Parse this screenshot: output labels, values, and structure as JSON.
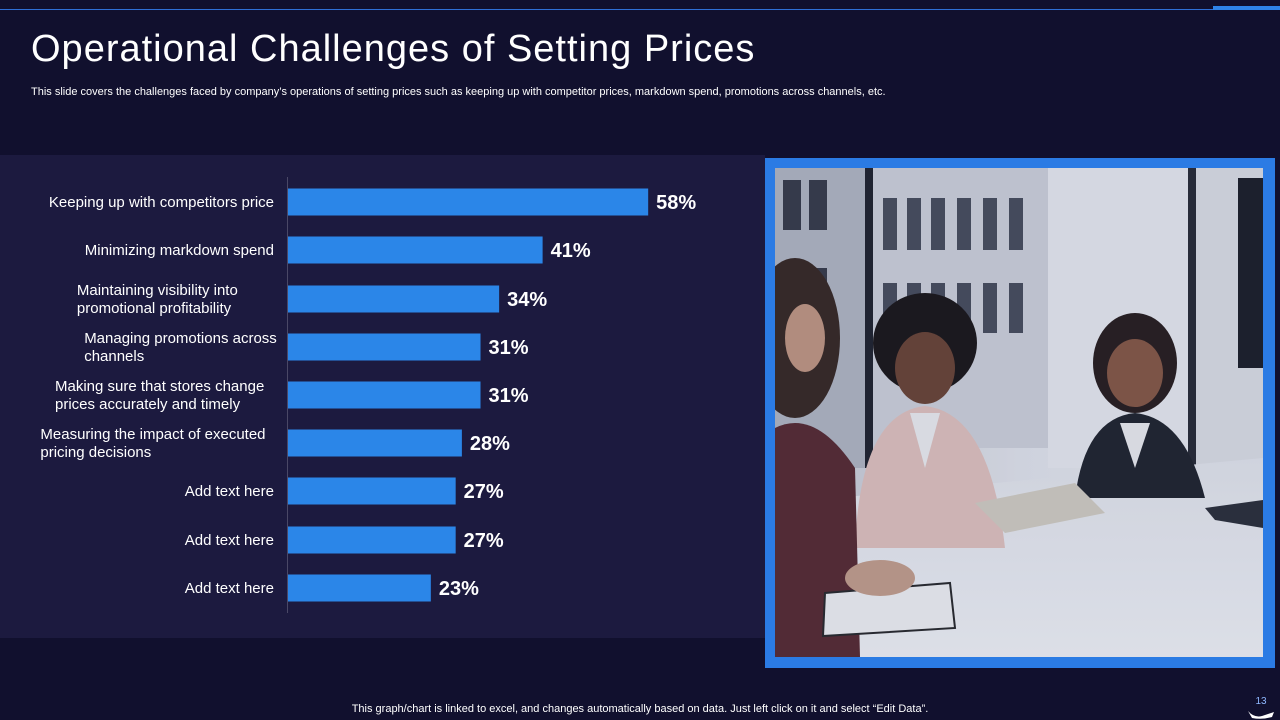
{
  "slide": {
    "title": "Operational Challenges of Setting Prices",
    "subtitle": "This slide covers the challenges faced by company’s operations of setting prices such as keeping up with competitor prices, markdown spend, promotions across channels, etc.",
    "footer": "This graph/chart is linked to excel,  and changes automatically based on data. Just left click on it and select “Edit Data”.",
    "page_number": "13"
  },
  "colors": {
    "background": "#11102e",
    "panel": "#1c1a3f",
    "bar": "#2b86e8",
    "accent": "#2b7be4"
  },
  "photo": {
    "icon": "meeting-photo-icon"
  },
  "chart_data": {
    "type": "bar",
    "orientation": "horizontal",
    "categories": [
      "Keeping up with competitors price",
      "Minimizing markdown spend",
      "Maintaining visibility into promotional profitability",
      "Managing promotions across channels",
      "Making sure that stores change prices accurately and timely",
      "Measuring the impact of executed pricing decisions",
      "Add text here",
      "Add text here",
      "Add text here"
    ],
    "category_lines": [
      [
        "Keeping up with competitors price"
      ],
      [
        "Minimizing markdown spend"
      ],
      [
        "Maintaining visibility into",
        "promotional profitability"
      ],
      [
        "Managing promotions across",
        "channels"
      ],
      [
        "Making sure that stores change",
        "prices accurately and timely"
      ],
      [
        "Measuring the impact of executed",
        "pricing decisions"
      ],
      [
        "Add text here"
      ],
      [
        "Add text here"
      ],
      [
        "Add text here"
      ]
    ],
    "values": [
      58,
      41,
      34,
      31,
      31,
      28,
      27,
      27,
      23
    ],
    "data_labels": [
      "58%",
      "41%",
      "34%",
      "31%",
      "31%",
      "28%",
      "27%",
      "27%",
      "23%"
    ],
    "xlim": [
      0,
      100
    ],
    "grid": false,
    "legend": "none"
  }
}
